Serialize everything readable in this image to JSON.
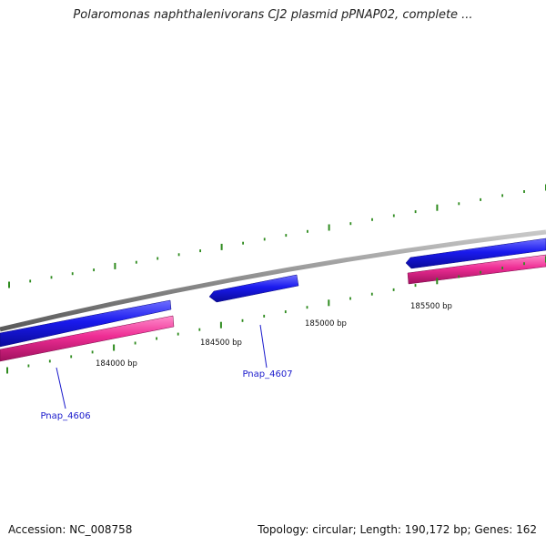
{
  "title": "Polaromonas naphthalenivorans CJ2 plasmid pPNAP02, complete ...",
  "accession": "Accession: NC_008758",
  "summary": "Topology: circular; Length: 190,172 bp; Genes: 162",
  "colors": {
    "backbone": "#8c8c8c",
    "forward_gene": "#1a1aee",
    "cds": "#ee2d94",
    "tick": "#2e8b1e",
    "label_link": "#1a1acc"
  },
  "scale_labels": [
    "184000 bp",
    "184500 bp",
    "185000 bp",
    "185500 bp"
  ],
  "features": [
    {
      "name": "Pnap_4606",
      "type": "gene",
      "strand": "forward"
    },
    {
      "name": "Pnap_4607",
      "type": "gene",
      "strand": "reverse"
    }
  ]
}
